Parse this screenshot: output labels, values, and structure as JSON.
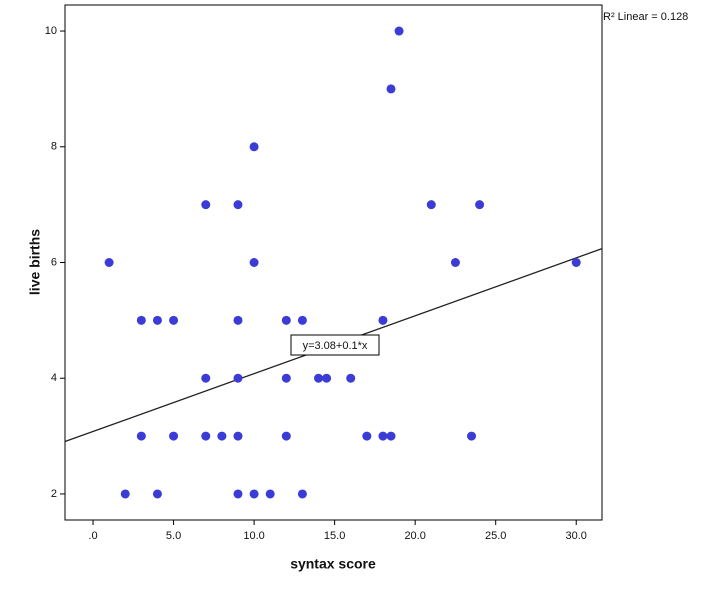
{
  "chart_data": {
    "type": "scatter",
    "x_label": "syntax score",
    "y_label": "live births",
    "color": "#3b3bd6",
    "x": [
      1,
      2,
      3,
      3,
      4,
      4,
      5,
      5,
      7,
      7,
      7,
      8,
      9,
      9,
      9,
      9,
      9,
      10,
      10,
      10,
      11,
      12,
      12,
      12,
      13,
      13,
      14,
      14.5,
      16,
      17,
      18,
      18,
      18.5,
      18.5,
      19,
      21,
      22.5,
      23.5,
      24,
      30
    ],
    "values": [
      6,
      2,
      5,
      3,
      5,
      2,
      5,
      3,
      7,
      4,
      3,
      3,
      7,
      5,
      4,
      3,
      2,
      8,
      6,
      2,
      2,
      5,
      4,
      3,
      5,
      2,
      4,
      4,
      4,
      3,
      5,
      3,
      3,
      9,
      10,
      7,
      6,
      3,
      7,
      6
    ],
    "xlim": [
      -1.74,
      31.6
    ],
    "ylim": [
      1.55,
      10.45
    ],
    "xticks": [
      {
        "value": 0,
        "label": ".0"
      },
      {
        "value": 5,
        "label": "5.0"
      },
      {
        "value": 10,
        "label": "10.0"
      },
      {
        "value": 15,
        "label": "15.0"
      },
      {
        "value": 20,
        "label": "20.0"
      },
      {
        "value": 25,
        "label": "25.0"
      },
      {
        "value": 30,
        "label": "30.0"
      }
    ],
    "yticks": [
      2,
      4,
      6,
      8,
      10
    ],
    "fit": {
      "intercept": 3.08,
      "slope": 0.1,
      "label": "y=3.08+0.1*x"
    },
    "r2_label": "R² Linear = 0.128"
  }
}
